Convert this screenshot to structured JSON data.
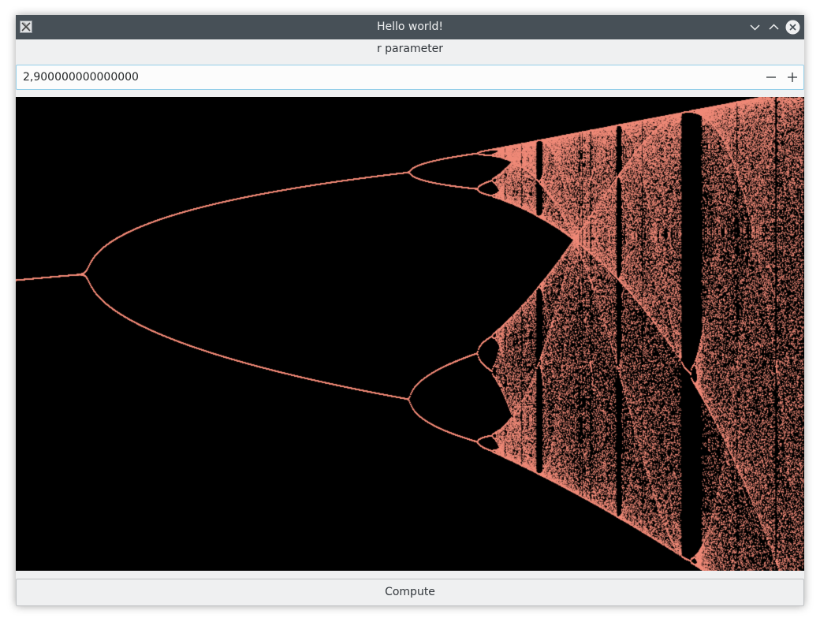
{
  "window": {
    "title": "Hello world!"
  },
  "form": {
    "parameter_label": "r parameter",
    "r_value": "2,900000000000000",
    "decrement_symbol": "−",
    "increment_symbol": "+"
  },
  "actions": {
    "compute_label": "Compute"
  },
  "plot": {
    "description_type": "logistic map bifurcation diagram",
    "r_min": 2.9,
    "r_max": 4.0,
    "background_color": "#000000",
    "point_color": "#f08a78"
  },
  "icons": {
    "app": "x-app-icon",
    "minimize": "chevron-down-icon",
    "maximize": "chevron-up-icon",
    "close": "close-icon"
  },
  "colors": {
    "titlebar": "#475057",
    "window_bg": "#eff0f1",
    "focus_border": "#93cee9"
  }
}
